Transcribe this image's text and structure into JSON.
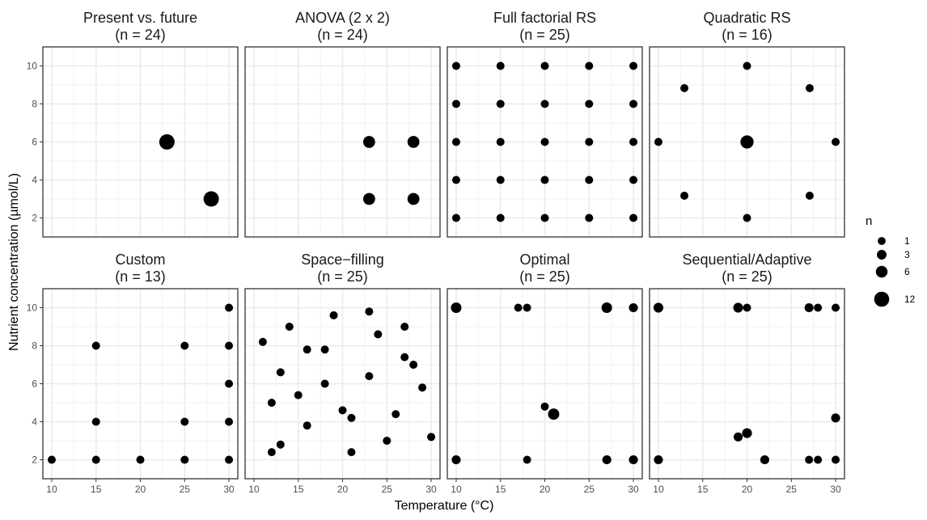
{
  "chart_data": {
    "type": "scatter",
    "xlabel": "Temperature (°C)",
    "ylabel": "Nutrient concentration (µmol/L)",
    "xlim": [
      9,
      31
    ],
    "ylim": [
      1,
      11
    ],
    "x_ticks": [
      10,
      15,
      20,
      25,
      30
    ],
    "y_ticks": [
      2,
      4,
      6,
      8,
      10
    ],
    "grid": true,
    "size_legend": {
      "title": "n",
      "placement": "right",
      "entries": [
        1,
        3,
        6,
        12
      ]
    },
    "panels": [
      {
        "title": "Present vs. future",
        "subtitle": "(n = 24)",
        "points": [
          {
            "x": 23,
            "y": 6,
            "n": 12
          },
          {
            "x": 28,
            "y": 3,
            "n": 12
          }
        ]
      },
      {
        "title": "ANOVA (2 x 2)",
        "subtitle": "(n = 24)",
        "points": [
          {
            "x": 23,
            "y": 6,
            "n": 6
          },
          {
            "x": 28,
            "y": 6,
            "n": 6
          },
          {
            "x": 23,
            "y": 3,
            "n": 6
          },
          {
            "x": 28,
            "y": 3,
            "n": 6
          }
        ]
      },
      {
        "title": "Full factorial RS",
        "subtitle": "(n = 25)",
        "points": [
          {
            "x": 10,
            "y": 2,
            "n": 1
          },
          {
            "x": 15,
            "y": 2,
            "n": 1
          },
          {
            "x": 20,
            "y": 2,
            "n": 1
          },
          {
            "x": 25,
            "y": 2,
            "n": 1
          },
          {
            "x": 30,
            "y": 2,
            "n": 1
          },
          {
            "x": 10,
            "y": 4,
            "n": 1
          },
          {
            "x": 15,
            "y": 4,
            "n": 1
          },
          {
            "x": 20,
            "y": 4,
            "n": 1
          },
          {
            "x": 25,
            "y": 4,
            "n": 1
          },
          {
            "x": 30,
            "y": 4,
            "n": 1
          },
          {
            "x": 10,
            "y": 6,
            "n": 1
          },
          {
            "x": 15,
            "y": 6,
            "n": 1
          },
          {
            "x": 20,
            "y": 6,
            "n": 1
          },
          {
            "x": 25,
            "y": 6,
            "n": 1
          },
          {
            "x": 30,
            "y": 6,
            "n": 1
          },
          {
            "x": 10,
            "y": 8,
            "n": 1
          },
          {
            "x": 15,
            "y": 8,
            "n": 1
          },
          {
            "x": 20,
            "y": 8,
            "n": 1
          },
          {
            "x": 25,
            "y": 8,
            "n": 1
          },
          {
            "x": 30,
            "y": 8,
            "n": 1
          },
          {
            "x": 10,
            "y": 10,
            "n": 1
          },
          {
            "x": 15,
            "y": 10,
            "n": 1
          },
          {
            "x": 20,
            "y": 10,
            "n": 1
          },
          {
            "x": 25,
            "y": 10,
            "n": 1
          },
          {
            "x": 30,
            "y": 10,
            "n": 1
          }
        ]
      },
      {
        "title": "Quadratic RS",
        "subtitle": "(n = 16)",
        "points": [
          {
            "x": 20,
            "y": 10,
            "n": 1
          },
          {
            "x": 12.93,
            "y": 8.83,
            "n": 1
          },
          {
            "x": 27.07,
            "y": 8.83,
            "n": 1
          },
          {
            "x": 10,
            "y": 6,
            "n": 1
          },
          {
            "x": 20,
            "y": 6,
            "n": 8
          },
          {
            "x": 30,
            "y": 6,
            "n": 1
          },
          {
            "x": 12.93,
            "y": 3.17,
            "n": 1
          },
          {
            "x": 27.07,
            "y": 3.17,
            "n": 1
          },
          {
            "x": 20,
            "y": 2,
            "n": 1
          }
        ]
      },
      {
        "title": "Custom",
        "subtitle": "(n = 13)",
        "points": [
          {
            "x": 30,
            "y": 10,
            "n": 1
          },
          {
            "x": 15,
            "y": 8,
            "n": 1
          },
          {
            "x": 25,
            "y": 8,
            "n": 1
          },
          {
            "x": 30,
            "y": 8,
            "n": 1
          },
          {
            "x": 30,
            "y": 6,
            "n": 1
          },
          {
            "x": 15,
            "y": 4,
            "n": 1
          },
          {
            "x": 25,
            "y": 4,
            "n": 1
          },
          {
            "x": 30,
            "y": 4,
            "n": 1
          },
          {
            "x": 10,
            "y": 2,
            "n": 1
          },
          {
            "x": 15,
            "y": 2,
            "n": 1
          },
          {
            "x": 20,
            "y": 2,
            "n": 1
          },
          {
            "x": 25,
            "y": 2,
            "n": 1
          },
          {
            "x": 30,
            "y": 2,
            "n": 1
          }
        ]
      },
      {
        "title": "Space−filling",
        "subtitle": "(n = 25)",
        "points": [
          {
            "x": 11,
            "y": 8.2,
            "n": 1
          },
          {
            "x": 14,
            "y": 9.0,
            "n": 1
          },
          {
            "x": 19,
            "y": 9.6,
            "n": 1
          },
          {
            "x": 23,
            "y": 9.8,
            "n": 1
          },
          {
            "x": 27,
            "y": 9.0,
            "n": 1
          },
          {
            "x": 24,
            "y": 8.6,
            "n": 1
          },
          {
            "x": 16,
            "y": 7.8,
            "n": 1
          },
          {
            "x": 18,
            "y": 7.8,
            "n": 1
          },
          {
            "x": 27,
            "y": 7.4,
            "n": 1
          },
          {
            "x": 28,
            "y": 7.0,
            "n": 1
          },
          {
            "x": 13,
            "y": 6.6,
            "n": 1
          },
          {
            "x": 23,
            "y": 6.4,
            "n": 1
          },
          {
            "x": 18,
            "y": 6.0,
            "n": 1
          },
          {
            "x": 29,
            "y": 5.8,
            "n": 1
          },
          {
            "x": 15,
            "y": 5.4,
            "n": 1
          },
          {
            "x": 12,
            "y": 5.0,
            "n": 1
          },
          {
            "x": 20,
            "y": 4.6,
            "n": 1
          },
          {
            "x": 21,
            "y": 4.2,
            "n": 1
          },
          {
            "x": 26,
            "y": 4.4,
            "n": 1
          },
          {
            "x": 16,
            "y": 3.8,
            "n": 1
          },
          {
            "x": 25,
            "y": 3.0,
            "n": 1
          },
          {
            "x": 30,
            "y": 3.2,
            "n": 1
          },
          {
            "x": 13,
            "y": 2.8,
            "n": 1
          },
          {
            "x": 12,
            "y": 2.4,
            "n": 1
          },
          {
            "x": 21,
            "y": 2.4,
            "n": 1
          }
        ]
      },
      {
        "title": "Optimal",
        "subtitle": "(n = 25)",
        "points": [
          {
            "x": 10,
            "y": 10,
            "n": 4
          },
          {
            "x": 17,
            "y": 10,
            "n": 1
          },
          {
            "x": 18,
            "y": 10,
            "n": 1
          },
          {
            "x": 27,
            "y": 10,
            "n": 4
          },
          {
            "x": 30,
            "y": 10,
            "n": 2
          },
          {
            "x": 20,
            "y": 4.8,
            "n": 1
          },
          {
            "x": 21,
            "y": 4.4,
            "n": 5
          },
          {
            "x": 10,
            "y": 2,
            "n": 2
          },
          {
            "x": 18,
            "y": 2,
            "n": 1
          },
          {
            "x": 27,
            "y": 2,
            "n": 2
          },
          {
            "x": 30,
            "y": 2,
            "n": 2
          }
        ]
      },
      {
        "title": "Sequential/Adaptive",
        "subtitle": "(n = 25)",
        "points": [
          {
            "x": 10,
            "y": 10,
            "n": 3
          },
          {
            "x": 19,
            "y": 10,
            "n": 3
          },
          {
            "x": 20,
            "y": 10,
            "n": 1
          },
          {
            "x": 27,
            "y": 10,
            "n": 2
          },
          {
            "x": 28,
            "y": 10,
            "n": 1
          },
          {
            "x": 30,
            "y": 10,
            "n": 1
          },
          {
            "x": 30,
            "y": 4.2,
            "n": 2
          },
          {
            "x": 20,
            "y": 3.4,
            "n": 3
          },
          {
            "x": 19,
            "y": 3.2,
            "n": 2
          },
          {
            "x": 10,
            "y": 2,
            "n": 2
          },
          {
            "x": 22,
            "y": 2,
            "n": 2
          },
          {
            "x": 27,
            "y": 2,
            "n": 1
          },
          {
            "x": 28,
            "y": 2,
            "n": 1
          },
          {
            "x": 30,
            "y": 2,
            "n": 1
          }
        ]
      }
    ]
  }
}
